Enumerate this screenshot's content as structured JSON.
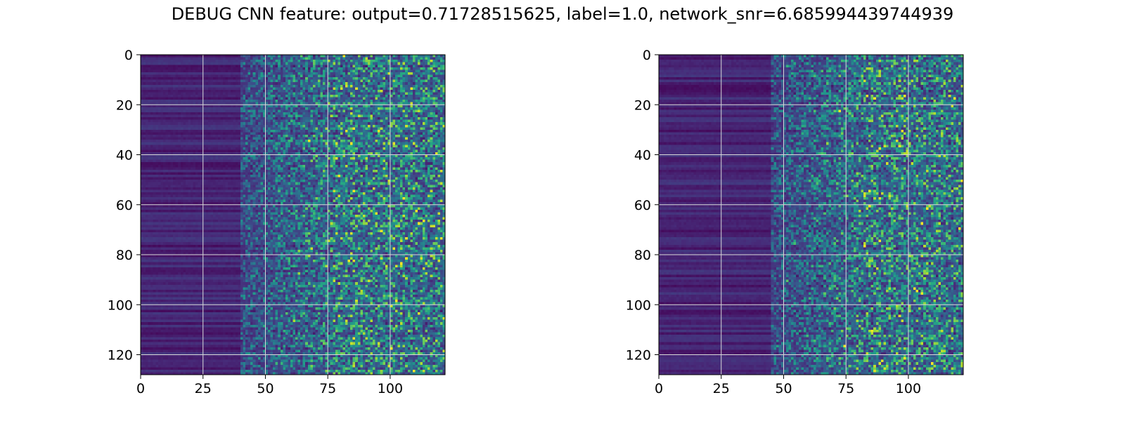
{
  "figure": {
    "title": "DEBUG CNN feature: output=0.71728515625, label=1.0, network_snr=6.685994439744939"
  },
  "colormap": "viridis",
  "colors": {
    "background_low": "#440154",
    "mid": "#21918c",
    "high": "#fde725",
    "grid": "#d9d9d9"
  },
  "chart_data": [
    {
      "type": "heatmap",
      "rows": 128,
      "cols": 122,
      "xlim": [
        0,
        122
      ],
      "ylim": [
        128,
        0
      ],
      "x_ticks": [
        0,
        25,
        50,
        75,
        100
      ],
      "y_ticks": [
        0,
        20,
        40,
        60,
        80,
        100,
        120
      ],
      "grid": true,
      "colormap": "viridis",
      "intensity_profile": [
        {
          "x_range": [
            0,
            40
          ],
          "level": "low, uniform horizontal bands"
        },
        {
          "x_range": [
            50,
            122
          ],
          "level": "noisy, sparse bright pixels"
        }
      ],
      "hotspots": [
        [
          84,
          35
        ],
        [
          113,
          66
        ],
        [
          104,
          83
        ],
        [
          102,
          98
        ],
        [
          83,
          82
        ],
        [
          95,
          30
        ]
      ]
    },
    {
      "type": "heatmap",
      "rows": 128,
      "cols": 122,
      "xlim": [
        0,
        122
      ],
      "ylim": [
        128,
        0
      ],
      "x_ticks": [
        0,
        25,
        50,
        75,
        100
      ],
      "y_ticks": [
        0,
        20,
        40,
        60,
        80,
        100,
        120
      ],
      "grid": true,
      "colormap": "viridis",
      "intensity_profile": [
        {
          "x_range": [
            0,
            45
          ],
          "level": "low, uniform horizontal bands"
        },
        {
          "x_range": [
            50,
            122
          ],
          "level": "noisy, sparse bright pixels"
        }
      ],
      "hotspots": [
        [
          72,
          22
        ],
        [
          88,
          37
        ],
        [
          84,
          60
        ],
        [
          88,
          74
        ],
        [
          98,
          121
        ],
        [
          74,
          116
        ],
        [
          82,
          76
        ],
        [
          105,
          95
        ],
        [
          84,
          54
        ],
        [
          120,
          69
        ]
      ]
    }
  ]
}
